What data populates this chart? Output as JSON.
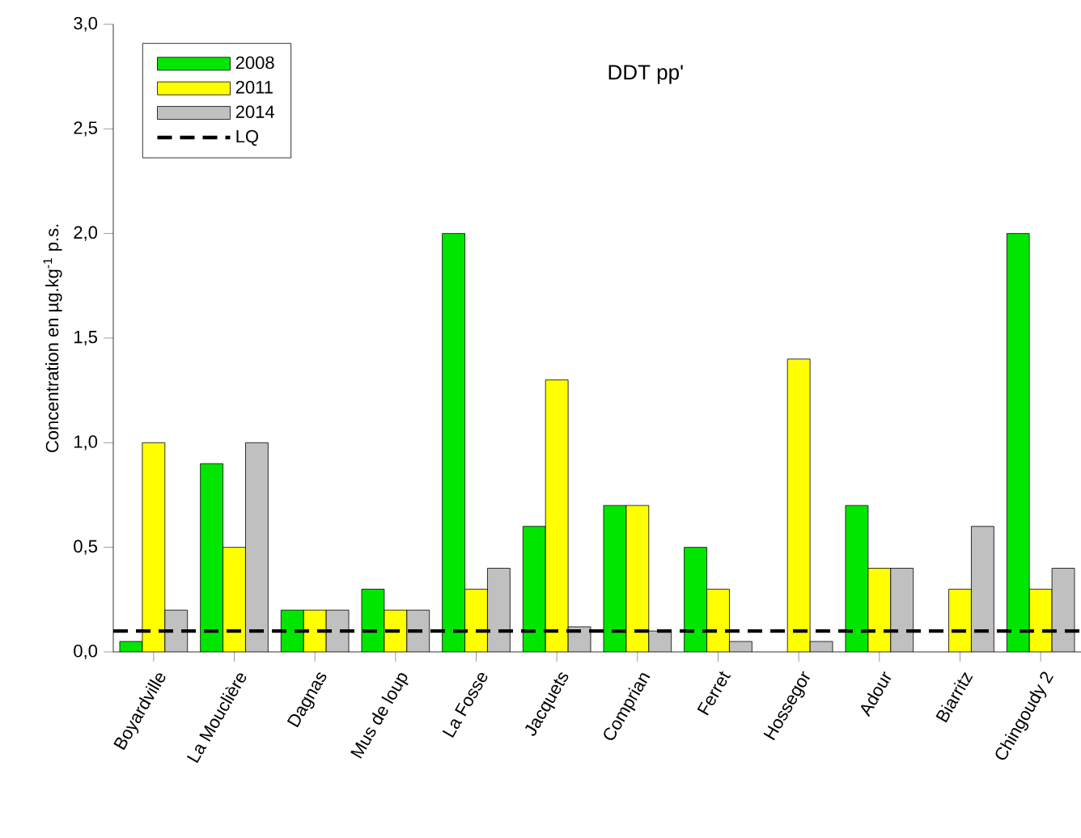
{
  "chart_data": {
    "type": "bar",
    "title": "DDT pp'",
    "ylabel": "Concentration en µg.kg$^{-1}$ p.s.",
    "categories": [
      "Boyardville",
      "La Mouclière",
      "Dagnas",
      "Mus de loup",
      "La Fosse",
      "Jacquets",
      "Comprian",
      "Ferret",
      "Hossegor",
      "Adour",
      "Biarritz",
      "Chingoudy 2"
    ],
    "series": [
      {
        "name": "2008",
        "color": "#00e600",
        "values": [
          0.05,
          0.9,
          0.2,
          0.3,
          2.0,
          0.6,
          0.7,
          0.5,
          null,
          0.7,
          null,
          2.0
        ]
      },
      {
        "name": "2011",
        "color": "#ffff00",
        "values": [
          1.0,
          0.5,
          0.2,
          0.2,
          0.3,
          1.3,
          0.7,
          0.3,
          1.4,
          0.4,
          0.3,
          0.3
        ]
      },
      {
        "name": "2014",
        "color": "#c0c0c0",
        "values": [
          0.2,
          1.0,
          0.2,
          0.2,
          0.4,
          0.12,
          0.1,
          0.05,
          0.05,
          0.4,
          0.6,
          0.4
        ]
      }
    ],
    "ylim": [
      0,
      3
    ],
    "yticks": [
      {
        "value": 0,
        "label": "0,0"
      },
      {
        "value": 0.5,
        "label": "0,5"
      },
      {
        "value": 1,
        "label": "1,0"
      },
      {
        "value": 1.5,
        "label": "1,5"
      },
      {
        "value": 2,
        "label": "2,0"
      },
      {
        "value": 2.5,
        "label": "2,5"
      },
      {
        "value": 3,
        "label": "3,0"
      }
    ],
    "ref_lines": [
      {
        "axis": "y",
        "value": 0.1,
        "label": "LQ",
        "color": "#000000",
        "line_style": "dashed"
      }
    ],
    "legend": "top left",
    "grid": false
  }
}
